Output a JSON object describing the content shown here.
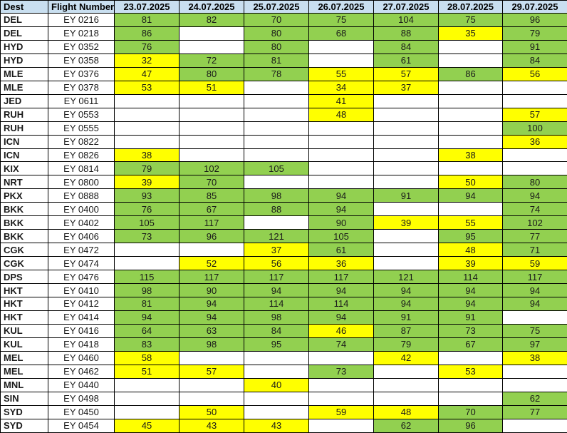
{
  "colors": {
    "green": "#92D050",
    "yellow": "#FFFF00",
    "header_bg": "#C9DFF0",
    "grid": "#000000"
  },
  "table": {
    "columns": [
      "Dest",
      "Flight Number",
      "23.07.2025",
      "24.07.2025",
      "25.07.2025",
      "26.07.2025",
      "27.07.2025",
      "28.07.2025",
      "29.07.2025"
    ],
    "fill_codes": {
      "G": "green",
      "Y": "yellow",
      "": "none"
    },
    "rows": [
      {
        "dest": "DEL",
        "flight": "EY 0216",
        "cells": [
          [
            "81",
            "G"
          ],
          [
            "82",
            "G"
          ],
          [
            "70",
            "G"
          ],
          [
            "75",
            "G"
          ],
          [
            "104",
            "G"
          ],
          [
            "75",
            "G"
          ],
          [
            "96",
            "G"
          ]
        ]
      },
      {
        "dest": "DEL",
        "flight": "EY 0218",
        "cells": [
          [
            "86",
            "G"
          ],
          [
            "",
            ""
          ],
          [
            "80",
            "G"
          ],
          [
            "68",
            "G"
          ],
          [
            "88",
            "G"
          ],
          [
            "35",
            "Y"
          ],
          [
            "79",
            "G"
          ]
        ]
      },
      {
        "dest": "HYD",
        "flight": "EY 0352",
        "cells": [
          [
            "76",
            "G"
          ],
          [
            "",
            ""
          ],
          [
            "80",
            "G"
          ],
          [
            "",
            ""
          ],
          [
            "84",
            "G"
          ],
          [
            "",
            ""
          ],
          [
            "91",
            "G"
          ]
        ]
      },
      {
        "dest": "HYD",
        "flight": "EY 0358",
        "cells": [
          [
            "32",
            "Y"
          ],
          [
            "72",
            "G"
          ],
          [
            "81",
            "G"
          ],
          [
            "",
            ""
          ],
          [
            "61",
            "G"
          ],
          [
            "",
            ""
          ],
          [
            "84",
            "G"
          ]
        ]
      },
      {
        "dest": "MLE",
        "flight": "EY 0376",
        "cells": [
          [
            "47",
            "Y"
          ],
          [
            "80",
            "G"
          ],
          [
            "78",
            "G"
          ],
          [
            "55",
            "Y"
          ],
          [
            "57",
            "Y"
          ],
          [
            "86",
            "G"
          ],
          [
            "56",
            "Y"
          ]
        ]
      },
      {
        "dest": "MLE",
        "flight": "EY 0378",
        "cells": [
          [
            "53",
            "Y"
          ],
          [
            "51",
            "Y"
          ],
          [
            "",
            ""
          ],
          [
            "34",
            "Y"
          ],
          [
            "37",
            "Y"
          ],
          [
            "",
            ""
          ],
          [
            "",
            ""
          ]
        ]
      },
      {
        "dest": "JED",
        "flight": "EY 0611",
        "cells": [
          [
            "",
            ""
          ],
          [
            "",
            ""
          ],
          [
            "",
            ""
          ],
          [
            "41",
            "Y"
          ],
          [
            "",
            ""
          ],
          [
            "",
            ""
          ],
          [
            "",
            ""
          ]
        ]
      },
      {
        "dest": "RUH",
        "flight": "EY 0553",
        "cells": [
          [
            "",
            ""
          ],
          [
            "",
            ""
          ],
          [
            "",
            ""
          ],
          [
            "48",
            "Y"
          ],
          [
            "",
            ""
          ],
          [
            "",
            ""
          ],
          [
            "57",
            "Y"
          ]
        ]
      },
      {
        "dest": "RUH",
        "flight": "EY 0555",
        "cells": [
          [
            "",
            ""
          ],
          [
            "",
            ""
          ],
          [
            "",
            ""
          ],
          [
            "",
            ""
          ],
          [
            "",
            ""
          ],
          [
            "",
            ""
          ],
          [
            "100",
            "G"
          ]
        ]
      },
      {
        "dest": "ICN",
        "flight": "EY 0822",
        "cells": [
          [
            "",
            ""
          ],
          [
            "",
            ""
          ],
          [
            "",
            ""
          ],
          [
            "",
            ""
          ],
          [
            "",
            ""
          ],
          [
            "",
            ""
          ],
          [
            "36",
            "Y"
          ]
        ]
      },
      {
        "dest": "ICN",
        "flight": "EY 0826",
        "cells": [
          [
            "38",
            "Y"
          ],
          [
            "",
            ""
          ],
          [
            "",
            ""
          ],
          [
            "",
            ""
          ],
          [
            "",
            ""
          ],
          [
            "38",
            "Y"
          ],
          [
            "",
            ""
          ]
        ]
      },
      {
        "dest": "KIX",
        "flight": "EY 0814",
        "cells": [
          [
            "79",
            "G"
          ],
          [
            "102",
            "G"
          ],
          [
            "105",
            "G"
          ],
          [
            "",
            ""
          ],
          [
            "",
            ""
          ],
          [
            "",
            ""
          ],
          [
            "",
            ""
          ]
        ]
      },
      {
        "dest": "NRT",
        "flight": "EY 0800",
        "cells": [
          [
            "39",
            "Y"
          ],
          [
            "70",
            "G"
          ],
          [
            "",
            ""
          ],
          [
            "",
            ""
          ],
          [
            "",
            ""
          ],
          [
            "50",
            "Y"
          ],
          [
            "80",
            "G"
          ]
        ]
      },
      {
        "dest": "PKX",
        "flight": "EY 0888",
        "cells": [
          [
            "93",
            "G"
          ],
          [
            "85",
            "G"
          ],
          [
            "98",
            "G"
          ],
          [
            "94",
            "G"
          ],
          [
            "91",
            "G"
          ],
          [
            "94",
            "G"
          ],
          [
            "94",
            "G"
          ]
        ]
      },
      {
        "dest": "BKK",
        "flight": "EY 0400",
        "cells": [
          [
            "76",
            "G"
          ],
          [
            "67",
            "G"
          ],
          [
            "88",
            "G"
          ],
          [
            "94",
            "G"
          ],
          [
            "",
            ""
          ],
          [
            "",
            ""
          ],
          [
            "74",
            "G"
          ]
        ]
      },
      {
        "dest": "BKK",
        "flight": "EY 0402",
        "cells": [
          [
            "105",
            "G"
          ],
          [
            "117",
            "G"
          ],
          [
            "",
            ""
          ],
          [
            "90",
            "G"
          ],
          [
            "39",
            "Y"
          ],
          [
            "55",
            "Y"
          ],
          [
            "102",
            "G"
          ]
        ]
      },
      {
        "dest": "BKK",
        "flight": "EY 0406",
        "cells": [
          [
            "73",
            "G"
          ],
          [
            "96",
            "G"
          ],
          [
            "121",
            "G"
          ],
          [
            "105",
            "G"
          ],
          [
            "",
            ""
          ],
          [
            "95",
            "G"
          ],
          [
            "77",
            "G"
          ]
        ]
      },
      {
        "dest": "CGK",
        "flight": "EY 0472",
        "cells": [
          [
            "",
            ""
          ],
          [
            "",
            ""
          ],
          [
            "37",
            "Y"
          ],
          [
            "61",
            "G"
          ],
          [
            "",
            ""
          ],
          [
            "48",
            "Y"
          ],
          [
            "71",
            "G"
          ]
        ]
      },
      {
        "dest": "CGK",
        "flight": "EY 0474",
        "cells": [
          [
            "",
            ""
          ],
          [
            "52",
            "Y"
          ],
          [
            "56",
            "Y"
          ],
          [
            "36",
            "Y"
          ],
          [
            "",
            ""
          ],
          [
            "39",
            "Y"
          ],
          [
            "59",
            "Y"
          ]
        ]
      },
      {
        "dest": "DPS",
        "flight": "EY 0476",
        "cells": [
          [
            "115",
            "G"
          ],
          [
            "117",
            "G"
          ],
          [
            "117",
            "G"
          ],
          [
            "117",
            "G"
          ],
          [
            "121",
            "G"
          ],
          [
            "114",
            "G"
          ],
          [
            "117",
            "G"
          ]
        ]
      },
      {
        "dest": "HKT",
        "flight": "EY 0410",
        "cells": [
          [
            "98",
            "G"
          ],
          [
            "90",
            "G"
          ],
          [
            "94",
            "G"
          ],
          [
            "94",
            "G"
          ],
          [
            "94",
            "G"
          ],
          [
            "94",
            "G"
          ],
          [
            "94",
            "G"
          ]
        ]
      },
      {
        "dest": "HKT",
        "flight": "EY 0412",
        "cells": [
          [
            "81",
            "G"
          ],
          [
            "94",
            "G"
          ],
          [
            "114",
            "G"
          ],
          [
            "114",
            "G"
          ],
          [
            "94",
            "G"
          ],
          [
            "94",
            "G"
          ],
          [
            "94",
            "G"
          ]
        ]
      },
      {
        "dest": "HKT",
        "flight": "EY 0414",
        "cells": [
          [
            "94",
            "G"
          ],
          [
            "94",
            "G"
          ],
          [
            "98",
            "G"
          ],
          [
            "94",
            "G"
          ],
          [
            "91",
            "G"
          ],
          [
            "91",
            "G"
          ],
          [
            "",
            ""
          ]
        ]
      },
      {
        "dest": "KUL",
        "flight": "EY 0416",
        "cells": [
          [
            "64",
            "G"
          ],
          [
            "63",
            "G"
          ],
          [
            "84",
            "G"
          ],
          [
            "46",
            "Y"
          ],
          [
            "87",
            "G"
          ],
          [
            "73",
            "G"
          ],
          [
            "75",
            "G"
          ]
        ]
      },
      {
        "dest": "KUL",
        "flight": "EY 0418",
        "cells": [
          [
            "83",
            "G"
          ],
          [
            "98",
            "G"
          ],
          [
            "95",
            "G"
          ],
          [
            "74",
            "G"
          ],
          [
            "79",
            "G"
          ],
          [
            "67",
            "G"
          ],
          [
            "97",
            "G"
          ]
        ]
      },
      {
        "dest": "MEL",
        "flight": "EY 0460",
        "cells": [
          [
            "58",
            "Y"
          ],
          [
            "",
            ""
          ],
          [
            "",
            ""
          ],
          [
            "",
            ""
          ],
          [
            "42",
            "Y"
          ],
          [
            "",
            ""
          ],
          [
            "38",
            "Y"
          ]
        ]
      },
      {
        "dest": "MEL",
        "flight": "EY 0462",
        "cells": [
          [
            "51",
            "Y"
          ],
          [
            "57",
            "Y"
          ],
          [
            "",
            ""
          ],
          [
            "73",
            "G"
          ],
          [
            "",
            ""
          ],
          [
            "53",
            "Y"
          ],
          [
            "",
            ""
          ]
        ]
      },
      {
        "dest": "MNL",
        "flight": "EY 0440",
        "cells": [
          [
            "",
            ""
          ],
          [
            "",
            ""
          ],
          [
            "40",
            "Y"
          ],
          [
            "",
            ""
          ],
          [
            "",
            ""
          ],
          [
            "",
            ""
          ],
          [
            "",
            ""
          ]
        ]
      },
      {
        "dest": "SIN",
        "flight": "EY 0498",
        "cells": [
          [
            "",
            ""
          ],
          [
            "",
            ""
          ],
          [
            "",
            ""
          ],
          [
            "",
            ""
          ],
          [
            "",
            ""
          ],
          [
            "",
            ""
          ],
          [
            "62",
            "G"
          ]
        ]
      },
      {
        "dest": "SYD",
        "flight": "EY 0450",
        "cells": [
          [
            "",
            ""
          ],
          [
            "50",
            "Y"
          ],
          [
            "",
            ""
          ],
          [
            "59",
            "Y"
          ],
          [
            "48",
            "Y"
          ],
          [
            "70",
            "G"
          ],
          [
            "77",
            "G"
          ]
        ]
      },
      {
        "dest": "SYD",
        "flight": "EY 0454",
        "cells": [
          [
            "45",
            "Y"
          ],
          [
            "43",
            "Y"
          ],
          [
            "43",
            "Y"
          ],
          [
            "",
            ""
          ],
          [
            "62",
            "G"
          ],
          [
            "96",
            "G"
          ],
          [
            "",
            ""
          ]
        ]
      }
    ]
  }
}
